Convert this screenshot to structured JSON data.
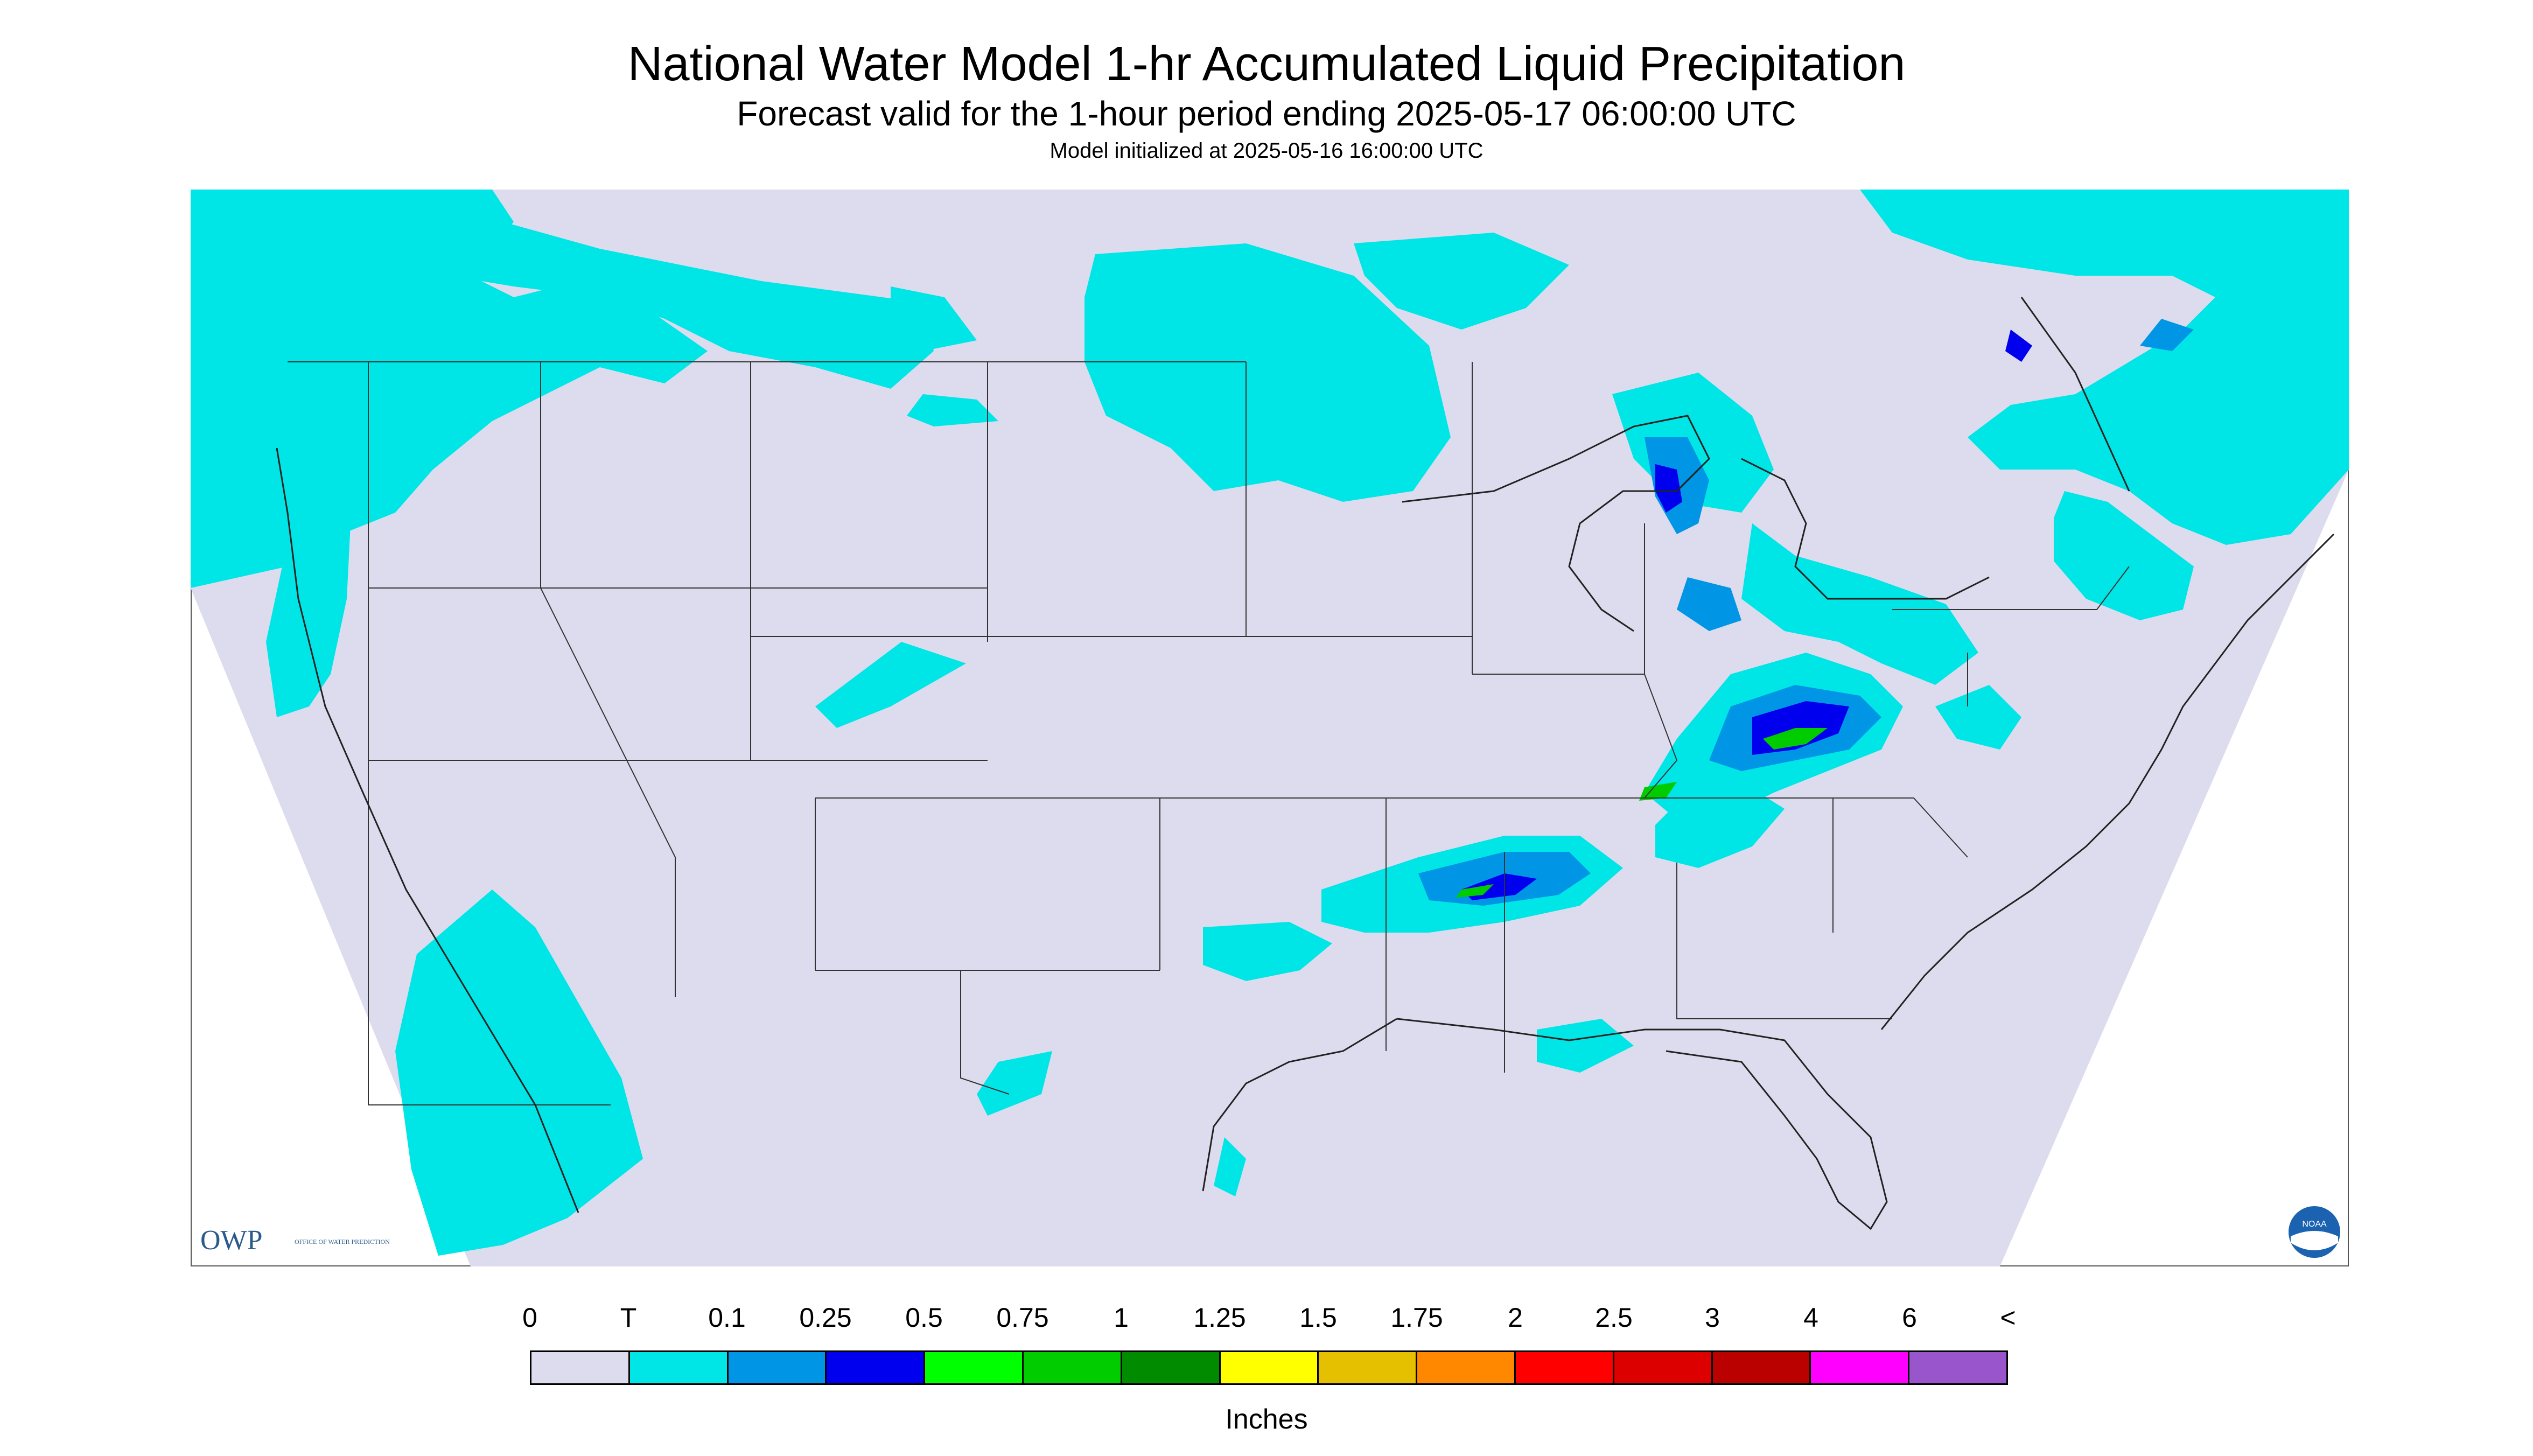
{
  "header": {
    "title": "National Water Model 1-hr Accumulated Liquid Precipitation",
    "subtitle": "Forecast valid for the 1-hour period ending 2025-05-17 06:00:00 UTC",
    "init": "Model initialized at 2025-05-16 16:00:00 UTC"
  },
  "map": {
    "background_color": "#dcdcee",
    "logos": {
      "owp": {
        "short": "OWP",
        "long": "OFFICE OF WATER PREDICTION",
        "color": "#2a5a8a"
      },
      "noaa": {
        "text": "NOAA",
        "color": "#1b63b0"
      }
    }
  },
  "legend": {
    "labels": [
      "0",
      "T",
      "0.1",
      "0.25",
      "0.5",
      "0.75",
      "1",
      "1.25",
      "1.5",
      "1.75",
      "2",
      "2.5",
      "3",
      "4",
      "6",
      "<"
    ],
    "colors": [
      "#dcdcee",
      "#00e5e5",
      "#0095e5",
      "#0000ee",
      "#00ff00",
      "#00cc00",
      "#008b00",
      "#ffff00",
      "#e5c000",
      "#ff8800",
      "#ff0000",
      "#dd0000",
      "#bb0000",
      "#ff00ff",
      "#9955cc"
    ],
    "units": "Inches"
  }
}
